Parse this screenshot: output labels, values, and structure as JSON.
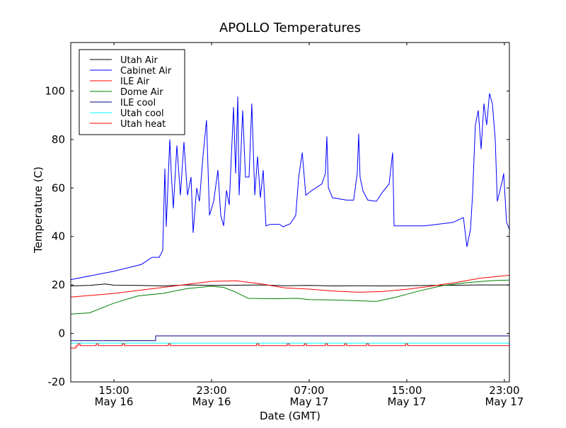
{
  "chart_data": {
    "type": "line",
    "title": "APOLLO Temperatures",
    "xlabel": "Date (GMT)",
    "ylabel": "Temperature (C)",
    "x_units": "hours since May 16 00:00 GMT",
    "xlim": [
      11.46,
      47.41
    ],
    "ylim": [
      -20,
      120
    ],
    "grid": false,
    "legend_position": "top-left",
    "yticks": [
      -20,
      0,
      20,
      40,
      60,
      80,
      100
    ],
    "xticks": [
      {
        "value": 15,
        "time": "15:00",
        "date": "May 16"
      },
      {
        "value": 23,
        "time": "23:00",
        "date": "May 16"
      },
      {
        "value": 31,
        "time": "07:00",
        "date": "May 17"
      },
      {
        "value": 39,
        "time": "15:00",
        "date": "May 17"
      },
      {
        "value": 47,
        "time": "23:00",
        "date": "May 17"
      }
    ],
    "series": [
      {
        "name": "Utah Air",
        "color": "#000000",
        "points": [
          [
            11.46,
            19.6
          ],
          [
            13,
            19.8
          ],
          [
            14.3,
            20.4
          ],
          [
            15,
            19.9
          ],
          [
            17,
            19.8
          ],
          [
            19,
            19.6
          ],
          [
            21,
            20.0
          ],
          [
            23,
            19.8
          ],
          [
            25,
            19.9
          ],
          [
            27,
            20.0
          ],
          [
            29,
            19.7
          ],
          [
            31,
            19.8
          ],
          [
            33,
            19.6
          ],
          [
            35,
            19.7
          ],
          [
            37,
            19.6
          ],
          [
            39,
            19.7
          ],
          [
            41,
            19.8
          ],
          [
            43,
            19.9
          ],
          [
            45,
            20.0
          ],
          [
            47.41,
            20.0
          ]
        ]
      },
      {
        "name": "Cabinet Air",
        "color": "#0000ff",
        "points": [
          [
            11.46,
            22.2
          ],
          [
            14.94,
            25.6
          ],
          [
            17.26,
            28.5
          ],
          [
            18.13,
            31.4
          ],
          [
            18.71,
            31.4
          ],
          [
            19.0,
            34.3
          ],
          [
            19.17,
            68
          ],
          [
            19.29,
            44
          ],
          [
            19.58,
            80
          ],
          [
            19.7,
            66
          ],
          [
            19.87,
            51.6
          ],
          [
            20.16,
            77.5
          ],
          [
            20.45,
            57
          ],
          [
            20.74,
            79
          ],
          [
            21.03,
            57
          ],
          [
            21.32,
            64.5
          ],
          [
            21.49,
            41.5
          ],
          [
            21.78,
            60
          ],
          [
            22.01,
            54.5
          ],
          [
            22.3,
            73
          ],
          [
            22.59,
            88
          ],
          [
            22.83,
            48.7
          ],
          [
            23.17,
            54.5
          ],
          [
            23.52,
            67.4
          ],
          [
            23.75,
            48.7
          ],
          [
            23.99,
            44.4
          ],
          [
            24.22,
            59
          ],
          [
            24.45,
            53
          ],
          [
            24.8,
            93.4
          ],
          [
            24.97,
            66
          ],
          [
            25.15,
            97.7
          ],
          [
            25.26,
            57
          ],
          [
            25.55,
            92
          ],
          [
            25.78,
            64.5
          ],
          [
            26.07,
            64.5
          ],
          [
            26.3,
            94.8
          ],
          [
            26.54,
            57
          ],
          [
            26.77,
            73
          ],
          [
            27.0,
            56
          ],
          [
            27.23,
            67.4
          ],
          [
            27.46,
            44.4
          ],
          [
            27.81,
            45
          ],
          [
            28.57,
            45
          ],
          [
            28.86,
            44
          ],
          [
            29.44,
            45.2
          ],
          [
            29.9,
            48.7
          ],
          [
            30.14,
            64.5
          ],
          [
            30.43,
            74.6
          ],
          [
            30.72,
            57
          ],
          [
            31.17,
            58.8
          ],
          [
            32.04,
            61.7
          ],
          [
            32.33,
            66
          ],
          [
            32.45,
            81.3
          ],
          [
            32.57,
            60.2
          ],
          [
            32.91,
            56
          ],
          [
            34.07,
            55
          ],
          [
            34.65,
            55
          ],
          [
            34.94,
            66
          ],
          [
            35.06,
            82.4
          ],
          [
            35.17,
            64.5
          ],
          [
            35.41,
            58.8
          ],
          [
            35.81,
            55
          ],
          [
            36.51,
            54.5
          ],
          [
            36.97,
            58
          ],
          [
            37.55,
            61.7
          ],
          [
            37.84,
            74.6
          ],
          [
            37.96,
            44.4
          ],
          [
            40.45,
            44.4
          ],
          [
            42.77,
            45.8
          ],
          [
            43.64,
            47.8
          ],
          [
            43.93,
            35.7
          ],
          [
            44.22,
            43
          ],
          [
            44.39,
            57
          ],
          [
            44.62,
            86
          ],
          [
            44.86,
            92
          ],
          [
            45.09,
            76
          ],
          [
            45.32,
            94.8
          ],
          [
            45.55,
            86
          ],
          [
            45.78,
            99
          ],
          [
            46.01,
            94.8
          ],
          [
            46.25,
            80
          ],
          [
            46.42,
            54.5
          ],
          [
            46.83,
            63
          ],
          [
            46.94,
            66
          ],
          [
            47.18,
            45.8
          ],
          [
            47.41,
            43
          ]
        ]
      },
      {
        "name": "ILE Air",
        "color": "#ff0000",
        "points": [
          [
            11.46,
            15
          ],
          [
            15,
            16.5
          ],
          [
            19,
            19
          ],
          [
            23,
            21.5
          ],
          [
            25,
            21.7
          ],
          [
            27,
            20.5
          ],
          [
            29,
            18.8
          ],
          [
            31,
            18.3
          ],
          [
            33,
            17.5
          ],
          [
            35,
            17
          ],
          [
            37,
            17.3
          ],
          [
            39,
            18.2
          ],
          [
            41,
            19.5
          ],
          [
            43,
            21
          ],
          [
            45,
            22.8
          ],
          [
            47.41,
            24
          ]
        ]
      },
      {
        "name": "Dome Air",
        "color": "#008000",
        "points": [
          [
            11.46,
            8
          ],
          [
            13,
            8.5
          ],
          [
            15,
            12.5
          ],
          [
            17,
            15.5
          ],
          [
            19,
            16.5
          ],
          [
            21,
            18.5
          ],
          [
            23,
            19.5
          ],
          [
            24,
            19
          ],
          [
            25,
            17
          ],
          [
            26,
            14.5
          ],
          [
            28,
            14.3
          ],
          [
            30,
            14.5
          ],
          [
            31,
            14
          ],
          [
            33,
            13.8
          ],
          [
            35,
            13.5
          ],
          [
            36.5,
            13.2
          ],
          [
            38,
            14.8
          ],
          [
            40,
            17.5
          ],
          [
            42,
            19.8
          ],
          [
            44,
            21
          ],
          [
            46,
            21.8
          ],
          [
            47.41,
            22
          ]
        ]
      },
      {
        "name": "ILE cool",
        "color": "#000080",
        "points": [
          [
            11.46,
            -3
          ],
          [
            18.42,
            -3
          ],
          [
            18.42,
            -1
          ],
          [
            47.41,
            -1
          ]
        ]
      },
      {
        "name": "Utah cool",
        "color": "#00ffff",
        "points": [
          [
            11.46,
            -4
          ],
          [
            47.41,
            -4
          ]
        ]
      },
      {
        "name": "Utah heat",
        "color": "#ff0000",
        "base": -5,
        "start": -6,
        "start_until": 11.9,
        "spike": -4.3,
        "spike_width": 0.17,
        "spikes": [
          12.05,
          13.55,
          15.7,
          19.46,
          26.7,
          29.2,
          30.6,
          32.33,
          33.9,
          35.7,
          38.9
        ]
      }
    ]
  }
}
